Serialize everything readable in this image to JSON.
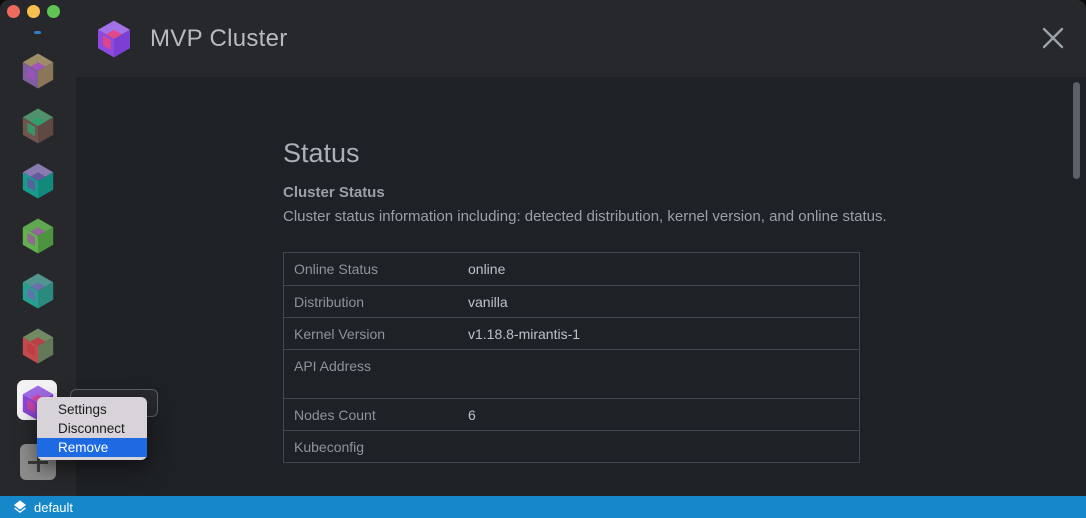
{
  "window": {
    "title": "MVP Cluster",
    "traffic_lights": [
      "#ed6a5e",
      "#f5bf4f",
      "#61c554"
    ]
  },
  "header": {
    "logo_icon": "cluster-cube-icon",
    "logo_colors": {
      "top": "#a472e8",
      "left": "#8c4ade",
      "right": "#7b3fd4",
      "accent": "#e8457f"
    }
  },
  "sidebar": {
    "clusters": [
      {
        "colors": {
          "top": "#9f8d68",
          "left": "#7d5f9e",
          "right": "#8a7758",
          "accent": "#a050c0"
        },
        "selected": false
      },
      {
        "colors": {
          "top": "#50906a",
          "left": "#6f554e",
          "right": "#5e4a42",
          "accent": "#2fa06e"
        },
        "selected": false
      },
      {
        "colors": {
          "top": "#8a7ab0",
          "left": "#189a8c",
          "right": "#11897c",
          "accent": "#60589e"
        },
        "selected": false
      },
      {
        "colors": {
          "top": "#5fa851",
          "left": "#63b04e",
          "right": "#4e9440",
          "accent": "#96609a"
        },
        "selected": false
      },
      {
        "colors": {
          "top": "#52958f",
          "left": "#27a08f",
          "right": "#2a8a7e",
          "accent": "#6a6cb0"
        },
        "selected": false
      },
      {
        "colors": {
          "top": "#718a64",
          "left": "#c24a4e",
          "right": "#64785a",
          "accent": "#c03a42"
        },
        "selected": false
      },
      {
        "colors": {
          "top": "#a06ae4",
          "left": "#8a46dc",
          "right": "#7b3fd0",
          "accent": "#d6459a"
        },
        "selected": true
      }
    ],
    "add_button_label": "+"
  },
  "main": {
    "heading": "Status",
    "section_title": "Cluster Status",
    "section_description": "Cluster status information including: detected distribution, kernel version, and online status.",
    "table": {
      "rows": [
        {
          "label": "Online Status",
          "value": "online"
        },
        {
          "label": "Distribution",
          "value": "vanilla"
        },
        {
          "label": "Kernel Version",
          "value": "v1.18.8-mirantis-1"
        },
        {
          "label": "API Address",
          "value": ""
        },
        {
          "label": "Nodes Count",
          "value": "6"
        },
        {
          "label": "Kubeconfig",
          "value": ""
        }
      ]
    }
  },
  "context_menu": {
    "items": [
      {
        "label": "Settings",
        "highlighted": false
      },
      {
        "label": "Disconnect",
        "highlighted": false
      },
      {
        "label": "Remove",
        "highlighted": true
      }
    ],
    "highlight_color": "#1d6ae2"
  },
  "statusbar": {
    "label": "default",
    "icon": "layers-icon",
    "background": "#1687c8"
  }
}
